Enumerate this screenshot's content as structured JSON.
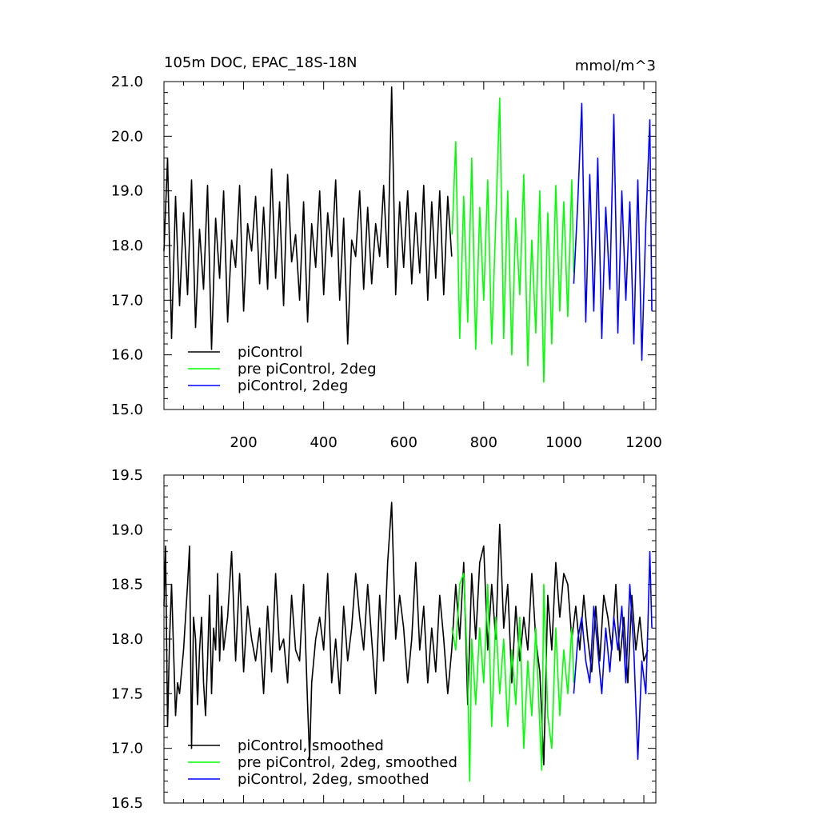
{
  "chart_data": [
    {
      "type": "line",
      "title": "105m DOC, EPAC_18S-18N",
      "units": "mmol/m^3",
      "xlabel": "",
      "ylabel": "",
      "xlim": [
        1,
        1230
      ],
      "ylim": [
        15.0,
        21.0
      ],
      "xticks": [
        200,
        400,
        600,
        800,
        1000,
        1200
      ],
      "xtick_labels": [
        "200",
        "400",
        "600",
        "800",
        "1000",
        "1200"
      ],
      "yticks": [
        15.0,
        16.0,
        17.0,
        18.0,
        19.0,
        20.0,
        21.0
      ],
      "ytick_labels": [
        "15.0",
        "16.0",
        "17.0",
        "18.0",
        "19.0",
        "20.0",
        "21.0"
      ],
      "legend_position": "bottom-left",
      "series": [
        {
          "name": "piControl",
          "color": "#000000",
          "x": [
            1,
            10,
            20,
            30,
            40,
            50,
            60,
            70,
            80,
            90,
            100,
            110,
            120,
            130,
            140,
            150,
            160,
            170,
            180,
            190,
            200,
            210,
            220,
            230,
            240,
            250,
            260,
            270,
            280,
            290,
            300,
            310,
            320,
            330,
            340,
            350,
            360,
            370,
            380,
            390,
            400,
            410,
            420,
            430,
            440,
            450,
            460,
            470,
            480,
            490,
            500,
            510,
            520,
            530,
            540,
            550,
            560,
            570,
            580,
            590,
            600,
            610,
            620,
            630,
            640,
            650,
            660,
            670,
            680,
            690,
            700,
            710,
            720
          ],
          "y": [
            17.9,
            19.6,
            16.3,
            18.9,
            16.9,
            18.6,
            17.1,
            19.2,
            16.5,
            18.3,
            17.2,
            19.1,
            16.1,
            18.5,
            17.4,
            19.0,
            16.6,
            18.1,
            17.6,
            19.1,
            16.8,
            18.4,
            17.9,
            18.9,
            17.3,
            18.7,
            17.2,
            19.4,
            17.4,
            18.8,
            16.9,
            19.3,
            17.7,
            18.2,
            17.0,
            18.8,
            16.6,
            18.4,
            17.6,
            19.0,
            17.1,
            18.6,
            17.8,
            19.2,
            17.0,
            18.5,
            16.2,
            18.1,
            17.8,
            19.0,
            17.2,
            18.7,
            17.3,
            18.4,
            17.8,
            19.1,
            17.6,
            20.9,
            17.1,
            18.8,
            17.6,
            19.0,
            17.3,
            18.6,
            17.5,
            19.1,
            17.0,
            18.8,
            17.4,
            19.0,
            17.1,
            18.9,
            17.8
          ]
        },
        {
          "name": "pre piControl, 2deg",
          "color": "#00ff00",
          "x": [
            721,
            730,
            740,
            750,
            760,
            770,
            780,
            790,
            800,
            810,
            820,
            830,
            840,
            850,
            860,
            870,
            880,
            890,
            900,
            910,
            920,
            930,
            940,
            950,
            960,
            970,
            980,
            990,
            1000,
            1010,
            1020,
            1025
          ],
          "y": [
            18.2,
            19.9,
            16.3,
            18.9,
            16.6,
            19.6,
            16.1,
            18.7,
            17.0,
            19.2,
            16.2,
            18.4,
            20.7,
            16.3,
            19.0,
            16.0,
            18.5,
            17.1,
            19.3,
            15.8,
            18.1,
            16.4,
            19.0,
            15.5,
            18.6,
            16.2,
            19.1,
            16.8,
            18.8,
            16.7,
            19.2,
            17.5
          ]
        },
        {
          "name": "piControl, 2deg",
          "color": "#0000ff",
          "x": [
            1025,
            1035,
            1045,
            1055,
            1065,
            1075,
            1085,
            1095,
            1105,
            1115,
            1125,
            1135,
            1145,
            1155,
            1165,
            1175,
            1185,
            1195,
            1205,
            1215,
            1220
          ],
          "y": [
            17.3,
            18.8,
            20.6,
            16.6,
            19.3,
            16.8,
            19.6,
            16.3,
            18.7,
            17.2,
            20.4,
            16.4,
            19.0,
            17.0,
            18.8,
            16.2,
            19.2,
            15.9,
            18.4,
            20.3,
            16.8
          ]
        }
      ]
    },
    {
      "type": "line",
      "title": "",
      "xlabel": "",
      "ylabel": "",
      "xlim": [
        1,
        1230
      ],
      "ylim": [
        16.5,
        19.5
      ],
      "xticks": [
        200,
        400,
        600,
        800,
        1000,
        1200
      ],
      "xtick_labels": [],
      "yticks": [
        16.5,
        17.0,
        17.5,
        18.0,
        18.5,
        19.0,
        19.5
      ],
      "ytick_labels": [
        "16.5",
        "17.0",
        "17.5",
        "18.0",
        "18.5",
        "19.0",
        "19.5"
      ],
      "legend_position": "bottom-left",
      "series": [
        {
          "name": "piControl, smoothed",
          "color": "#000000",
          "x": [
            1,
            5,
            10,
            15,
            20,
            25,
            30,
            35,
            40,
            45,
            50,
            55,
            60,
            65,
            70,
            75,
            80,
            85,
            90,
            95,
            100,
            105,
            110,
            115,
            120,
            125,
            130,
            135,
            140,
            145,
            150,
            160,
            170,
            180,
            190,
            200,
            210,
            220,
            230,
            240,
            250,
            260,
            270,
            280,
            290,
            300,
            310,
            320,
            330,
            340,
            350,
            360,
            365,
            370,
            380,
            390,
            400,
            410,
            420,
            430,
            440,
            450,
            460,
            470,
            480,
            490,
            500,
            510,
            520,
            530,
            540,
            550,
            560,
            570,
            580,
            590,
            600,
            610,
            620,
            630,
            640,
            650,
            660,
            670,
            680,
            690,
            700,
            710,
            720,
            730,
            740,
            750,
            760,
            770,
            780,
            790,
            800,
            810,
            820,
            830,
            840,
            850,
            860,
            870,
            880,
            890,
            900,
            910,
            920,
            930,
            940,
            950,
            960,
            970,
            980,
            990,
            1000,
            1010,
            1020,
            1030,
            1040,
            1050,
            1060,
            1070,
            1080,
            1090,
            1100,
            1110,
            1120,
            1130,
            1140,
            1150,
            1160,
            1170,
            1180,
            1190,
            1200,
            1210
          ],
          "y": [
            18.3,
            18.85,
            17.2,
            18.0,
            18.5,
            17.9,
            17.3,
            17.6,
            17.5,
            17.7,
            17.9,
            18.2,
            18.5,
            18.85,
            17.0,
            18.2,
            18.0,
            17.4,
            17.9,
            18.2,
            17.6,
            17.3,
            17.8,
            18.4,
            17.5,
            18.1,
            17.9,
            18.6,
            17.8,
            18.3,
            17.9,
            18.2,
            18.8,
            17.8,
            18.6,
            17.7,
            18.3,
            18.0,
            17.8,
            18.1,
            17.5,
            18.3,
            17.7,
            18.6,
            17.9,
            18.0,
            17.6,
            18.4,
            17.9,
            17.8,
            18.5,
            17.4,
            16.9,
            17.6,
            18.0,
            18.2,
            17.9,
            18.6,
            17.6,
            18.0,
            17.5,
            18.3,
            17.8,
            18.1,
            18.6,
            18.2,
            17.9,
            18.5,
            18.0,
            17.5,
            18.4,
            17.8,
            18.7,
            19.25,
            18.0,
            18.4,
            18.1,
            17.6,
            18.0,
            18.7,
            17.9,
            18.3,
            17.6,
            18.1,
            17.7,
            18.4,
            18.0,
            17.5,
            17.9,
            18.5,
            18.0,
            18.7,
            17.4,
            18.6,
            18.0,
            18.7,
            18.85,
            17.9,
            18.5,
            18.0,
            19.05,
            18.1,
            18.5,
            17.6,
            18.3,
            17.8,
            18.2,
            17.9,
            18.6,
            18.0,
            17.7,
            16.85,
            18.4,
            17.9,
            18.7,
            18.2,
            18.6,
            18.5,
            18.0,
            18.3,
            17.9,
            18.4,
            18.0,
            17.7,
            18.3,
            17.8,
            18.4,
            18.2,
            17.9,
            18.5,
            17.8,
            18.2,
            17.6,
            18.4,
            17.9,
            18.2,
            17.8,
            17.9
          ]
        },
        {
          "name": "pre piControl, 2deg, smoothed",
          "color": "#00ff00",
          "x": [
            721,
            730,
            740,
            750,
            760,
            765,
            770,
            780,
            790,
            800,
            810,
            820,
            830,
            840,
            850,
            860,
            870,
            880,
            890,
            900,
            910,
            920,
            930,
            940,
            945,
            950,
            960,
            970,
            980,
            990,
            1000,
            1010,
            1020,
            1025
          ],
          "y": [
            18.1,
            17.9,
            18.5,
            18.6,
            17.7,
            16.7,
            18.0,
            17.4,
            18.1,
            17.6,
            18.5,
            17.2,
            18.2,
            17.5,
            18.0,
            17.2,
            17.9,
            17.4,
            18.2,
            17.0,
            17.8,
            17.3,
            18.1,
            17.2,
            16.8,
            18.5,
            17.3,
            17.0,
            18.1,
            17.3,
            17.9,
            17.5,
            18.1,
            17.6
          ]
        },
        {
          "name": "piControl, 2deg, smoothed",
          "color": "#0000ff",
          "x": [
            1025,
            1035,
            1045,
            1055,
            1065,
            1075,
            1085,
            1095,
            1105,
            1115,
            1125,
            1135,
            1145,
            1155,
            1165,
            1175,
            1185,
            1195,
            1205,
            1210,
            1215,
            1220
          ],
          "y": [
            17.5,
            18.0,
            18.2,
            17.8,
            17.6,
            18.3,
            17.9,
            17.5,
            18.1,
            17.7,
            18.2,
            17.9,
            18.3,
            17.6,
            18.5,
            17.9,
            16.9,
            17.8,
            17.5,
            18.1,
            18.8,
            18.1
          ]
        }
      ]
    }
  ]
}
